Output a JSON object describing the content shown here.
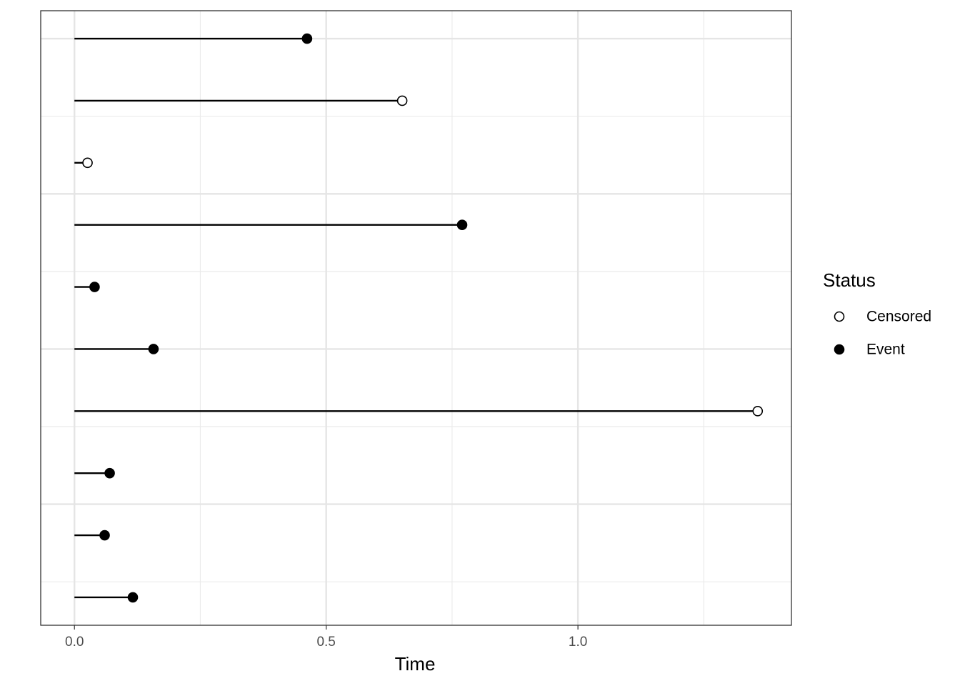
{
  "chart_data": {
    "type": "lollipop",
    "x_label": "Time",
    "y": [
      10,
      9,
      8,
      7,
      6,
      5,
      4,
      3,
      2,
      1
    ],
    "values": [
      0.462,
      0.651,
      0.026,
      0.77,
      0.04,
      0.157,
      1.357,
      0.07,
      0.06,
      0.116
    ],
    "status": [
      "Event",
      "Censored",
      "Censored",
      "Event",
      "Event",
      "Event",
      "Censored",
      "Event",
      "Event",
      "Event"
    ],
    "legend_title": "Status",
    "status_levels": [
      {
        "name": "Censored",
        "fill": "#ffffff"
      },
      {
        "name": "Event",
        "fill": "#000000"
      }
    ],
    "color": "#000000",
    "xlim": [
      -0.067,
      1.424
    ],
    "xticks": [
      {
        "value": 0,
        "label": "0.0"
      },
      {
        "value": 0.5,
        "label": "0.5"
      },
      {
        "value": 1,
        "label": "1.0"
      }
    ],
    "xminor": [
      0.25,
      0.75,
      1.25
    ],
    "ylim": [
      0.55,
      10.45
    ],
    "yticks": [
      2.5,
      5,
      7.5,
      10
    ],
    "yminor": [
      1.25,
      3.75,
      6.25,
      8.75
    ],
    "grid": true,
    "legend": "right"
  }
}
